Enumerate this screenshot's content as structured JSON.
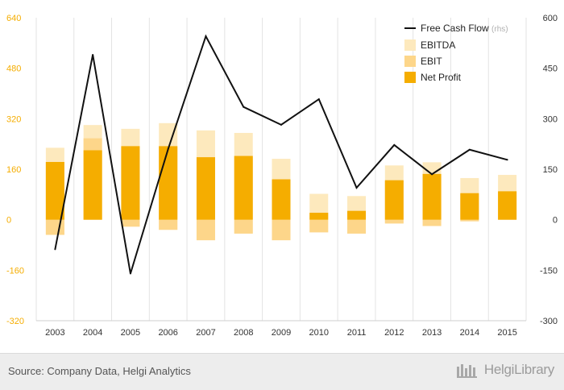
{
  "chart_data": {
    "type": "bar",
    "categories": [
      "2003",
      "2004",
      "2005",
      "2006",
      "2007",
      "2008",
      "2009",
      "2010",
      "2011",
      "2012",
      "2013",
      "2014",
      "2015"
    ],
    "ylim_left": [
      -320,
      640
    ],
    "yticks_left": [
      "640",
      "480",
      "320",
      "160",
      "0",
      "-160",
      "-320"
    ],
    "ylim_right": [
      -300,
      600
    ],
    "yticks_right": [
      "600",
      "450",
      "300",
      "150",
      "0",
      "-150",
      "-300"
    ],
    "legend_position": "top-right",
    "grid": "vertical",
    "series": [
      {
        "name": "Free Cash Flow",
        "suffix": "(rhs)",
        "type": "line",
        "axis": "right",
        "color": "#111111",
        "values": [
          -88,
          490,
          -160,
          210,
          545,
          335,
          282,
          358,
          95,
          222,
          135,
          208,
          178
        ]
      },
      {
        "name": "EBITDA",
        "type": "bar",
        "axis": "left",
        "color": "#fde9bd",
        "pos": [
          228,
          300,
          288,
          306,
          283,
          275,
          193,
          82,
          75,
          172,
          182,
          132,
          142
        ],
        "neg": [
          -48,
          0,
          -22,
          -32,
          -65,
          -44,
          -65,
          -40,
          -44,
          -12,
          -20,
          -5,
          0
        ]
      },
      {
        "name": "EBIT",
        "type": "bar",
        "axis": "left",
        "color": "#fdd68a",
        "pos": [
          183,
          258,
          233,
          233,
          198,
          202,
          128,
          22,
          28,
          125,
          145,
          84,
          90
        ],
        "neg": [
          -48,
          0,
          -22,
          -32,
          -65,
          -44,
          -65,
          -40,
          -44,
          -12,
          -20,
          -5,
          0
        ]
      },
      {
        "name": "Net Profit",
        "type": "bar",
        "axis": "left",
        "color": "#f5ad00",
        "values": [
          183,
          220,
          233,
          233,
          198,
          202,
          128,
          22,
          28,
          125,
          145,
          84,
          90
        ]
      }
    ]
  },
  "colors": {
    "left_axis": "#f5ad00",
    "right_axis": "#333333",
    "grid": "#e3e3e3"
  },
  "footer": {
    "source": "Source: Company Data, Helgi Analytics",
    "brand": "HelgiLibrary"
  }
}
